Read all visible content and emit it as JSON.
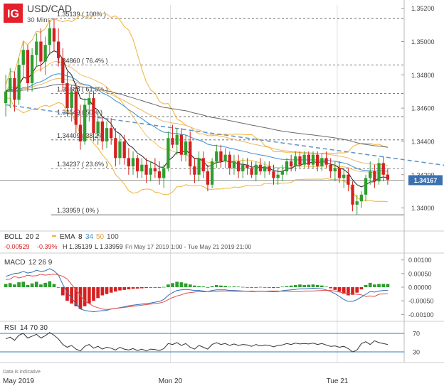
{
  "logo": {
    "text": "IG",
    "color": "#e3202b"
  },
  "header": {
    "symbol": "USD/CAD",
    "interval": "30 Mins"
  },
  "colors": {
    "up": "#2e9e2e",
    "down": "#d62020",
    "boll": "#f2b233",
    "ema8": "#222222",
    "ema34": "#3c8fd0",
    "ema50": "#e8b56a",
    "ema100": "#6a6a6a",
    "trendline": "#5b93c9",
    "macd_line": "#2e6fb8",
    "macd_signal": "#e04d4d",
    "rsi_line": "#333333",
    "rsi_band": "#2f78c4",
    "price_tag": "#3a6fb0"
  },
  "chart_data": [
    {
      "type": "candlestick",
      "title": "USD/CAD 30 Mins",
      "ylim": [
        1.33959,
        1.35139
      ],
      "y_ticks": [
        {
          "value": 1.352,
          "label": "1.35200"
        },
        {
          "value": 1.35,
          "label": "1.35000"
        },
        {
          "value": 1.348,
          "label": "1.34800"
        },
        {
          "value": 1.346,
          "label": "1.34600"
        },
        {
          "value": 1.344,
          "label": "1.34400"
        },
        {
          "value": 1.342,
          "label": "1.34200"
        },
        {
          "value": 1.34,
          "label": "1.34000"
        }
      ],
      "x_tick_labels": [
        {
          "label": "May 2019",
          "bar": 0
        },
        {
          "label": "Mon 20",
          "bar": 38
        },
        {
          "label": "Tue 21",
          "bar": 76
        }
      ],
      "current_price": {
        "value": 1.34167,
        "label": "1.34167"
      },
      "fibonacci": [
        {
          "value": 1.35139,
          "label": "1.35139 ( 100% )"
        },
        {
          "value": 1.3486,
          "label": "1.34860 ( 76.4% )"
        },
        {
          "value": 1.34688,
          "label": "1.34688 ( 61.8% )"
        },
        {
          "value": 1.34549,
          "label": "1.34549 ( 50% )"
        },
        {
          "value": 1.34409,
          "label": "1.34409 ( 38.2% )"
        },
        {
          "value": 1.34237,
          "label": "1.34237 ( 23.6% )"
        },
        {
          "value": 1.33959,
          "label": "1.33959 ( 0% )"
        }
      ],
      "trendline": {
        "from": {
          "bar": 0,
          "price": 1.3462
        },
        "to": {
          "bar": 110,
          "price": 1.3422
        }
      },
      "candles": [
        {
          "o": 1.3463,
          "h": 1.348,
          "l": 1.3455,
          "c": 1.347
        },
        {
          "o": 1.347,
          "h": 1.3484,
          "l": 1.346,
          "c": 1.3478
        },
        {
          "o": 1.3478,
          "h": 1.3482,
          "l": 1.3458,
          "c": 1.3465
        },
        {
          "o": 1.3465,
          "h": 1.349,
          "l": 1.3462,
          "c": 1.3486
        },
        {
          "o": 1.3486,
          "h": 1.35,
          "l": 1.3478,
          "c": 1.3495
        },
        {
          "o": 1.3495,
          "h": 1.3498,
          "l": 1.347,
          "c": 1.3475
        },
        {
          "o": 1.3475,
          "h": 1.3496,
          "l": 1.347,
          "c": 1.3492
        },
        {
          "o": 1.3492,
          "h": 1.3505,
          "l": 1.3485,
          "c": 1.35
        },
        {
          "o": 1.35,
          "h": 1.3508,
          "l": 1.3482,
          "c": 1.3488
        },
        {
          "o": 1.3488,
          "h": 1.3503,
          "l": 1.348,
          "c": 1.3498
        },
        {
          "o": 1.3498,
          "h": 1.3512,
          "l": 1.3492,
          "c": 1.3508
        },
        {
          "o": 1.3508,
          "h": 1.3514,
          "l": 1.3494,
          "c": 1.35
        },
        {
          "o": 1.35,
          "h": 1.3508,
          "l": 1.3485,
          "c": 1.349
        },
        {
          "o": 1.349,
          "h": 1.3496,
          "l": 1.347,
          "c": 1.3475
        },
        {
          "o": 1.3475,
          "h": 1.3482,
          "l": 1.3455,
          "c": 1.346
        },
        {
          "o": 1.346,
          "h": 1.3474,
          "l": 1.3452,
          "c": 1.347
        },
        {
          "o": 1.347,
          "h": 1.3475,
          "l": 1.3445,
          "c": 1.345
        },
        {
          "o": 1.345,
          "h": 1.3462,
          "l": 1.3435,
          "c": 1.344
        },
        {
          "o": 1.344,
          "h": 1.3466,
          "l": 1.3438,
          "c": 1.3462
        },
        {
          "o": 1.3462,
          "h": 1.347,
          "l": 1.3452,
          "c": 1.3466
        },
        {
          "o": 1.3466,
          "h": 1.347,
          "l": 1.344,
          "c": 1.3445
        },
        {
          "o": 1.3445,
          "h": 1.3458,
          "l": 1.3438,
          "c": 1.3452
        },
        {
          "o": 1.3452,
          "h": 1.3455,
          "l": 1.3435,
          "c": 1.344
        },
        {
          "o": 1.344,
          "h": 1.3452,
          "l": 1.3436,
          "c": 1.3448
        },
        {
          "o": 1.3448,
          "h": 1.3454,
          "l": 1.3438,
          "c": 1.3442
        },
        {
          "o": 1.3442,
          "h": 1.3448,
          "l": 1.3425,
          "c": 1.343
        },
        {
          "o": 1.343,
          "h": 1.3445,
          "l": 1.3426,
          "c": 1.344
        },
        {
          "o": 1.344,
          "h": 1.3444,
          "l": 1.3426,
          "c": 1.343
        },
        {
          "o": 1.343,
          "h": 1.3436,
          "l": 1.342,
          "c": 1.3425
        },
        {
          "o": 1.3425,
          "h": 1.3434,
          "l": 1.342,
          "c": 1.343
        },
        {
          "o": 1.343,
          "h": 1.3432,
          "l": 1.3418,
          "c": 1.3422
        },
        {
          "o": 1.3422,
          "h": 1.343,
          "l": 1.3418,
          "c": 1.3426
        },
        {
          "o": 1.3426,
          "h": 1.343,
          "l": 1.3415,
          "c": 1.342
        },
        {
          "o": 1.342,
          "h": 1.3428,
          "l": 1.3416,
          "c": 1.3424
        },
        {
          "o": 1.3424,
          "h": 1.343,
          "l": 1.3418,
          "c": 1.3422
        },
        {
          "o": 1.3422,
          "h": 1.3428,
          "l": 1.3414,
          "c": 1.3418
        },
        {
          "o": 1.3418,
          "h": 1.3426,
          "l": 1.3412,
          "c": 1.3424
        },
        {
          "o": 1.3424,
          "h": 1.3446,
          "l": 1.3422,
          "c": 1.3442
        },
        {
          "o": 1.3442,
          "h": 1.345,
          "l": 1.3436,
          "c": 1.3438
        },
        {
          "o": 1.3438,
          "h": 1.3448,
          "l": 1.3432,
          "c": 1.3444
        },
        {
          "o": 1.3444,
          "h": 1.3448,
          "l": 1.3428,
          "c": 1.3432
        },
        {
          "o": 1.3432,
          "h": 1.3444,
          "l": 1.3428,
          "c": 1.344
        },
        {
          "o": 1.344,
          "h": 1.3446,
          "l": 1.342,
          "c": 1.3425
        },
        {
          "o": 1.3425,
          "h": 1.343,
          "l": 1.3415,
          "c": 1.342
        },
        {
          "o": 1.342,
          "h": 1.3434,
          "l": 1.3416,
          "c": 1.343
        },
        {
          "o": 1.343,
          "h": 1.3434,
          "l": 1.3418,
          "c": 1.3422
        },
        {
          "o": 1.3422,
          "h": 1.3426,
          "l": 1.341,
          "c": 1.3414
        },
        {
          "o": 1.3414,
          "h": 1.343,
          "l": 1.3412,
          "c": 1.3428
        },
        {
          "o": 1.3428,
          "h": 1.3438,
          "l": 1.3424,
          "c": 1.3434
        },
        {
          "o": 1.3434,
          "h": 1.3438,
          "l": 1.3424,
          "c": 1.3428
        },
        {
          "o": 1.3428,
          "h": 1.3436,
          "l": 1.3424,
          "c": 1.3432
        },
        {
          "o": 1.3432,
          "h": 1.3434,
          "l": 1.342,
          "c": 1.3424
        },
        {
          "o": 1.3424,
          "h": 1.3432,
          "l": 1.342,
          "c": 1.3428
        },
        {
          "o": 1.3428,
          "h": 1.3432,
          "l": 1.3418,
          "c": 1.3422
        },
        {
          "o": 1.3422,
          "h": 1.343,
          "l": 1.3418,
          "c": 1.3426
        },
        {
          "o": 1.3426,
          "h": 1.343,
          "l": 1.342,
          "c": 1.3424
        },
        {
          "o": 1.3424,
          "h": 1.3428,
          "l": 1.3418,
          "c": 1.342
        },
        {
          "o": 1.342,
          "h": 1.3428,
          "l": 1.3416,
          "c": 1.3426
        },
        {
          "o": 1.3426,
          "h": 1.343,
          "l": 1.342,
          "c": 1.3422
        },
        {
          "o": 1.3422,
          "h": 1.3428,
          "l": 1.3418,
          "c": 1.3425
        },
        {
          "o": 1.3425,
          "h": 1.3428,
          "l": 1.342,
          "c": 1.3422
        },
        {
          "o": 1.3422,
          "h": 1.3426,
          "l": 1.3414,
          "c": 1.3418
        },
        {
          "o": 1.3418,
          "h": 1.3424,
          "l": 1.3414,
          "c": 1.342
        },
        {
          "o": 1.342,
          "h": 1.3426,
          "l": 1.3416,
          "c": 1.3422
        },
        {
          "o": 1.3422,
          "h": 1.343,
          "l": 1.342,
          "c": 1.3428
        },
        {
          "o": 1.3428,
          "h": 1.3432,
          "l": 1.3422,
          "c": 1.3425
        },
        {
          "o": 1.3425,
          "h": 1.3434,
          "l": 1.3422,
          "c": 1.3431
        },
        {
          "o": 1.3431,
          "h": 1.3434,
          "l": 1.3424,
          "c": 1.3426
        },
        {
          "o": 1.3426,
          "h": 1.3434,
          "l": 1.3424,
          "c": 1.3432
        },
        {
          "o": 1.3432,
          "h": 1.3434,
          "l": 1.3424,
          "c": 1.3426
        },
        {
          "o": 1.3426,
          "h": 1.3434,
          "l": 1.3424,
          "c": 1.3432
        },
        {
          "o": 1.3432,
          "h": 1.3434,
          "l": 1.3422,
          "c": 1.3425
        },
        {
          "o": 1.3425,
          "h": 1.3433,
          "l": 1.3422,
          "c": 1.343
        },
        {
          "o": 1.343,
          "h": 1.3434,
          "l": 1.3424,
          "c": 1.3426
        },
        {
          "o": 1.3426,
          "h": 1.343,
          "l": 1.3418,
          "c": 1.3422
        },
        {
          "o": 1.3422,
          "h": 1.3428,
          "l": 1.3416,
          "c": 1.3424
        },
        {
          "o": 1.3424,
          "h": 1.3428,
          "l": 1.3415,
          "c": 1.3418
        },
        {
          "o": 1.3418,
          "h": 1.3424,
          "l": 1.3412,
          "c": 1.342
        },
        {
          "o": 1.342,
          "h": 1.3424,
          "l": 1.341,
          "c": 1.3414
        },
        {
          "o": 1.3414,
          "h": 1.3416,
          "l": 1.3398,
          "c": 1.3402
        },
        {
          "o": 1.3402,
          "h": 1.3408,
          "l": 1.3396,
          "c": 1.3404
        },
        {
          "o": 1.3404,
          "h": 1.341,
          "l": 1.34,
          "c": 1.3408
        },
        {
          "o": 1.3408,
          "h": 1.342,
          "l": 1.3404,
          "c": 1.3418
        },
        {
          "o": 1.3418,
          "h": 1.3428,
          "l": 1.3414,
          "c": 1.3422
        },
        {
          "o": 1.3422,
          "h": 1.3426,
          "l": 1.3412,
          "c": 1.3416
        },
        {
          "o": 1.3416,
          "h": 1.343,
          "l": 1.3414,
          "c": 1.3427
        },
        {
          "o": 1.3427,
          "h": 1.3431,
          "l": 1.3416,
          "c": 1.342
        },
        {
          "o": 1.342,
          "h": 1.3424,
          "l": 1.3414,
          "c": 1.3417
        }
      ]
    },
    {
      "type": "indicator-legend",
      "boll": {
        "label": "BOLL",
        "params": "20 2"
      },
      "ema": {
        "label": "EMA",
        "periods": [
          "8",
          "34",
          "50",
          "100"
        ]
      },
      "change": "-0.00529",
      "change_pct": "-0.39%",
      "high": "H 1.35139",
      "low": "L 1.33959",
      "range": "Fri May 17 2019 1:00 - Tue May 21 2019 21:00"
    },
    {
      "type": "macd",
      "title": "MACD",
      "params": "12 26 9",
      "ylim": [
        -0.0012,
        0.0012
      ],
      "y_ticks": [
        {
          "value": 0.001,
          "label": "0.00100"
        },
        {
          "value": 0.0005,
          "label": "0.00050"
        },
        {
          "value": 0.0,
          "label": "0.00000"
        },
        {
          "value": -0.0005,
          "label": "-0.00050"
        },
        {
          "value": -0.001,
          "label": "-0.00100"
        }
      ],
      "histogram": [
        0.00012,
        0.00015,
        0.0001,
        0.00018,
        0.0002,
        8e-05,
        0.00014,
        0.0002,
        0.0001,
        0.00016,
        0.00022,
        0.00012,
        0.0,
        -0.0003,
        -0.0005,
        -0.0006,
        -0.0007,
        -0.0008,
        -0.0007,
        -0.0006,
        -0.0005,
        -0.0004,
        -0.0003,
        -0.00025,
        -0.0002,
        -0.00016,
        -0.00012,
        -0.0001,
        -8e-05,
        -6e-05,
        -5e-05,
        -4e-05,
        -3e-05,
        -2e-05,
        -2e-05,
        -1e-05,
        1e-05,
        0.0001,
        0.00015,
        0.0002,
        0.00018,
        0.00014,
        0.0001,
        6e-05,
        4e-05,
        3e-05,
        0.0,
        4e-05,
        8e-05,
        6e-05,
        5e-05,
        2e-05,
        3e-05,
        2e-05,
        1e-05,
        0.0,
        -2e-05,
        -1e-05,
        1e-05,
        0.0,
        -2e-05,
        -3e-05,
        -2e-05,
        2e-05,
        4e-05,
        6e-05,
        8e-05,
        0.0001,
        8e-05,
        9e-05,
        0.0001,
        8e-05,
        6e-05,
        2e-05,
        -4e-05,
        -0.0001,
        -0.00016,
        -0.00024,
        -0.0003,
        -0.00028,
        -0.0002,
        -8e-05,
        8e-05,
        0.00016,
        0.0001,
        0.00012,
        0.00012,
        0.00012
      ],
      "macd_line": [
        0.0004,
        0.00045,
        0.0005,
        0.00052,
        0.00058,
        0.00052,
        0.00055,
        0.00062,
        0.00058,
        0.0006,
        0.00068,
        0.0006,
        0.00045,
        0.0001,
        -0.0002,
        -0.0004,
        -0.0006,
        -0.0008,
        -0.00085,
        -0.00088,
        -0.0009,
        -0.00088,
        -0.00086,
        -0.00085,
        -0.0008,
        -0.00078,
        -0.00075,
        -0.00072,
        -0.00068,
        -0.00066,
        -0.00064,
        -0.00062,
        -0.0006,
        -0.00058,
        -0.00055,
        -0.00052,
        -0.00045,
        -0.0003,
        -0.0002,
        -0.00012,
        -0.0001,
        -8e-05,
        -0.0001,
        -0.00012,
        -0.00012,
        -0.00014,
        -0.00016,
        -0.00012,
        -0.0001,
        -0.0001,
        -0.0001,
        -0.00012,
        -0.00012,
        -0.00013,
        -0.00014,
        -0.00015,
        -0.00016,
        -0.00016,
        -0.00014,
        -0.00015,
        -0.00016,
        -0.00017,
        -0.00016,
        -0.00013,
        -0.00011,
        -0.0001,
        -8e-05,
        -6e-05,
        -6e-05,
        -5e-05,
        -4e-05,
        -5e-05,
        -6e-05,
        -0.0001,
        -0.00016,
        -0.00024,
        -0.00034,
        -0.00045,
        -0.00052,
        -0.00052,
        -0.00046,
        -0.00036,
        -0.00026,
        -0.00016,
        -0.00018,
        -0.00014,
        -0.00012,
        -0.00012
      ],
      "signal_line": [
        0.00028,
        0.0003,
        0.0004,
        0.00034,
        0.00038,
        0.00044,
        0.00041,
        0.00042,
        0.00048,
        0.00044,
        0.00046,
        0.00048,
        0.00045,
        0.0004,
        0.0003,
        0.0001,
        -0.0001,
        -0.0003,
        -0.0005,
        -0.0006,
        -0.0007,
        -0.00075,
        -0.0008,
        -0.00082,
        -0.0008,
        -0.00078,
        -0.00076,
        -0.00074,
        -0.00072,
        -0.0007,
        -0.00068,
        -0.00066,
        -0.00064,
        -0.00062,
        -0.0006,
        -0.00058,
        -0.00054,
        -0.00046,
        -0.00038,
        -0.00032,
        -0.00028,
        -0.00022,
        -0.0002,
        -0.00018,
        -0.00016,
        -0.00017,
        -0.00016,
        -0.00016,
        -0.00015,
        -0.00014,
        -0.00014,
        -0.00014,
        -0.00015,
        -0.00015,
        -0.00015,
        -0.00015,
        -0.00014,
        -0.00015,
        -0.00015,
        -0.00015,
        -0.00014,
        -0.00014,
        -0.00014,
        -0.00015,
        -0.00015,
        -0.00016,
        -0.00016,
        -0.00016,
        -0.00014,
        -0.00014,
        -0.00014,
        -0.00013,
        -0.00012,
        -0.00012,
        -0.00012,
        -0.00014,
        -0.00018,
        -0.00021,
        -0.00022,
        -0.00024,
        -0.00026,
        -0.00028,
        -0.00034,
        -0.00032,
        -0.00034,
        -0.00026,
        -0.00024,
        -0.00024
      ]
    },
    {
      "type": "rsi",
      "title": "RSI",
      "params": "14 70 30",
      "ylim": [
        10,
        90
      ],
      "levels": [
        {
          "value": 70,
          "label": "70"
        },
        {
          "value": 30,
          "label": "30"
        }
      ],
      "values": [
        58,
        62,
        55,
        66,
        70,
        60,
        64,
        68,
        60,
        65,
        72,
        66,
        58,
        46,
        40,
        44,
        36,
        32,
        42,
        46,
        38,
        42,
        36,
        40,
        38,
        34,
        40,
        36,
        34,
        37,
        33,
        36,
        32,
        36,
        35,
        33,
        37,
        48,
        46,
        50,
        44,
        48,
        40,
        36,
        44,
        40,
        36,
        46,
        50,
        46,
        48,
        44,
        47,
        44,
        46,
        45,
        42,
        46,
        43,
        45,
        44,
        41,
        44,
        45,
        48,
        46,
        49,
        47,
        48,
        47,
        49,
        46,
        48,
        45,
        42,
        43,
        40,
        42,
        37,
        30,
        34,
        48,
        52,
        46,
        54,
        50,
        48,
        46
      ]
    },
    {
      "type": "footer",
      "note": "Data is indicative"
    }
  ]
}
